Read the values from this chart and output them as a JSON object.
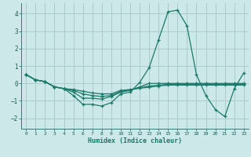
{
  "xlabel": "Humidex (Indice chaleur)",
  "background_color": "#cce8e8",
  "grid_color": "#aacccc",
  "line_color": "#1a7a6a",
  "xlim": [
    -0.5,
    23.5
  ],
  "ylim": [
    -2.6,
    4.6
  ],
  "yticks": [
    -2,
    -1,
    0,
    1,
    2,
    3,
    4
  ],
  "xticks": [
    0,
    1,
    2,
    3,
    4,
    5,
    6,
    7,
    8,
    9,
    10,
    11,
    12,
    13,
    14,
    15,
    16,
    17,
    18,
    19,
    20,
    21,
    22,
    23
  ],
  "series": [
    [
      0.5,
      0.2,
      0.1,
      -0.2,
      -0.3,
      -0.7,
      -1.2,
      -1.2,
      -1.3,
      -1.1,
      -0.6,
      -0.5,
      0.05,
      0.9,
      2.5,
      4.1,
      4.2,
      3.3,
      0.5,
      -0.7,
      -1.5,
      -1.9,
      -0.3,
      0.6
    ],
    [
      0.5,
      0.2,
      0.1,
      -0.2,
      -0.3,
      -0.5,
      -0.85,
      -0.85,
      -0.9,
      -0.75,
      -0.5,
      -0.4,
      -0.2,
      0.0,
      0.0,
      0.0,
      0.0,
      0.0,
      0.0,
      0.0,
      0.0,
      0.0,
      0.0,
      0.0
    ],
    [
      0.5,
      0.2,
      0.1,
      -0.2,
      -0.3,
      -0.4,
      -0.6,
      -0.7,
      -0.75,
      -0.7,
      -0.45,
      -0.38,
      -0.25,
      -0.15,
      -0.1,
      -0.05,
      -0.05,
      -0.05,
      -0.05,
      -0.05,
      -0.05,
      -0.05,
      -0.05,
      -0.05
    ],
    [
      0.5,
      0.2,
      0.1,
      -0.2,
      -0.3,
      -0.35,
      -0.45,
      -0.55,
      -0.6,
      -0.6,
      -0.4,
      -0.35,
      -0.28,
      -0.22,
      -0.15,
      -0.1,
      -0.1,
      -0.1,
      -0.1,
      -0.1,
      -0.1,
      -0.1,
      -0.1,
      -0.1
    ]
  ]
}
